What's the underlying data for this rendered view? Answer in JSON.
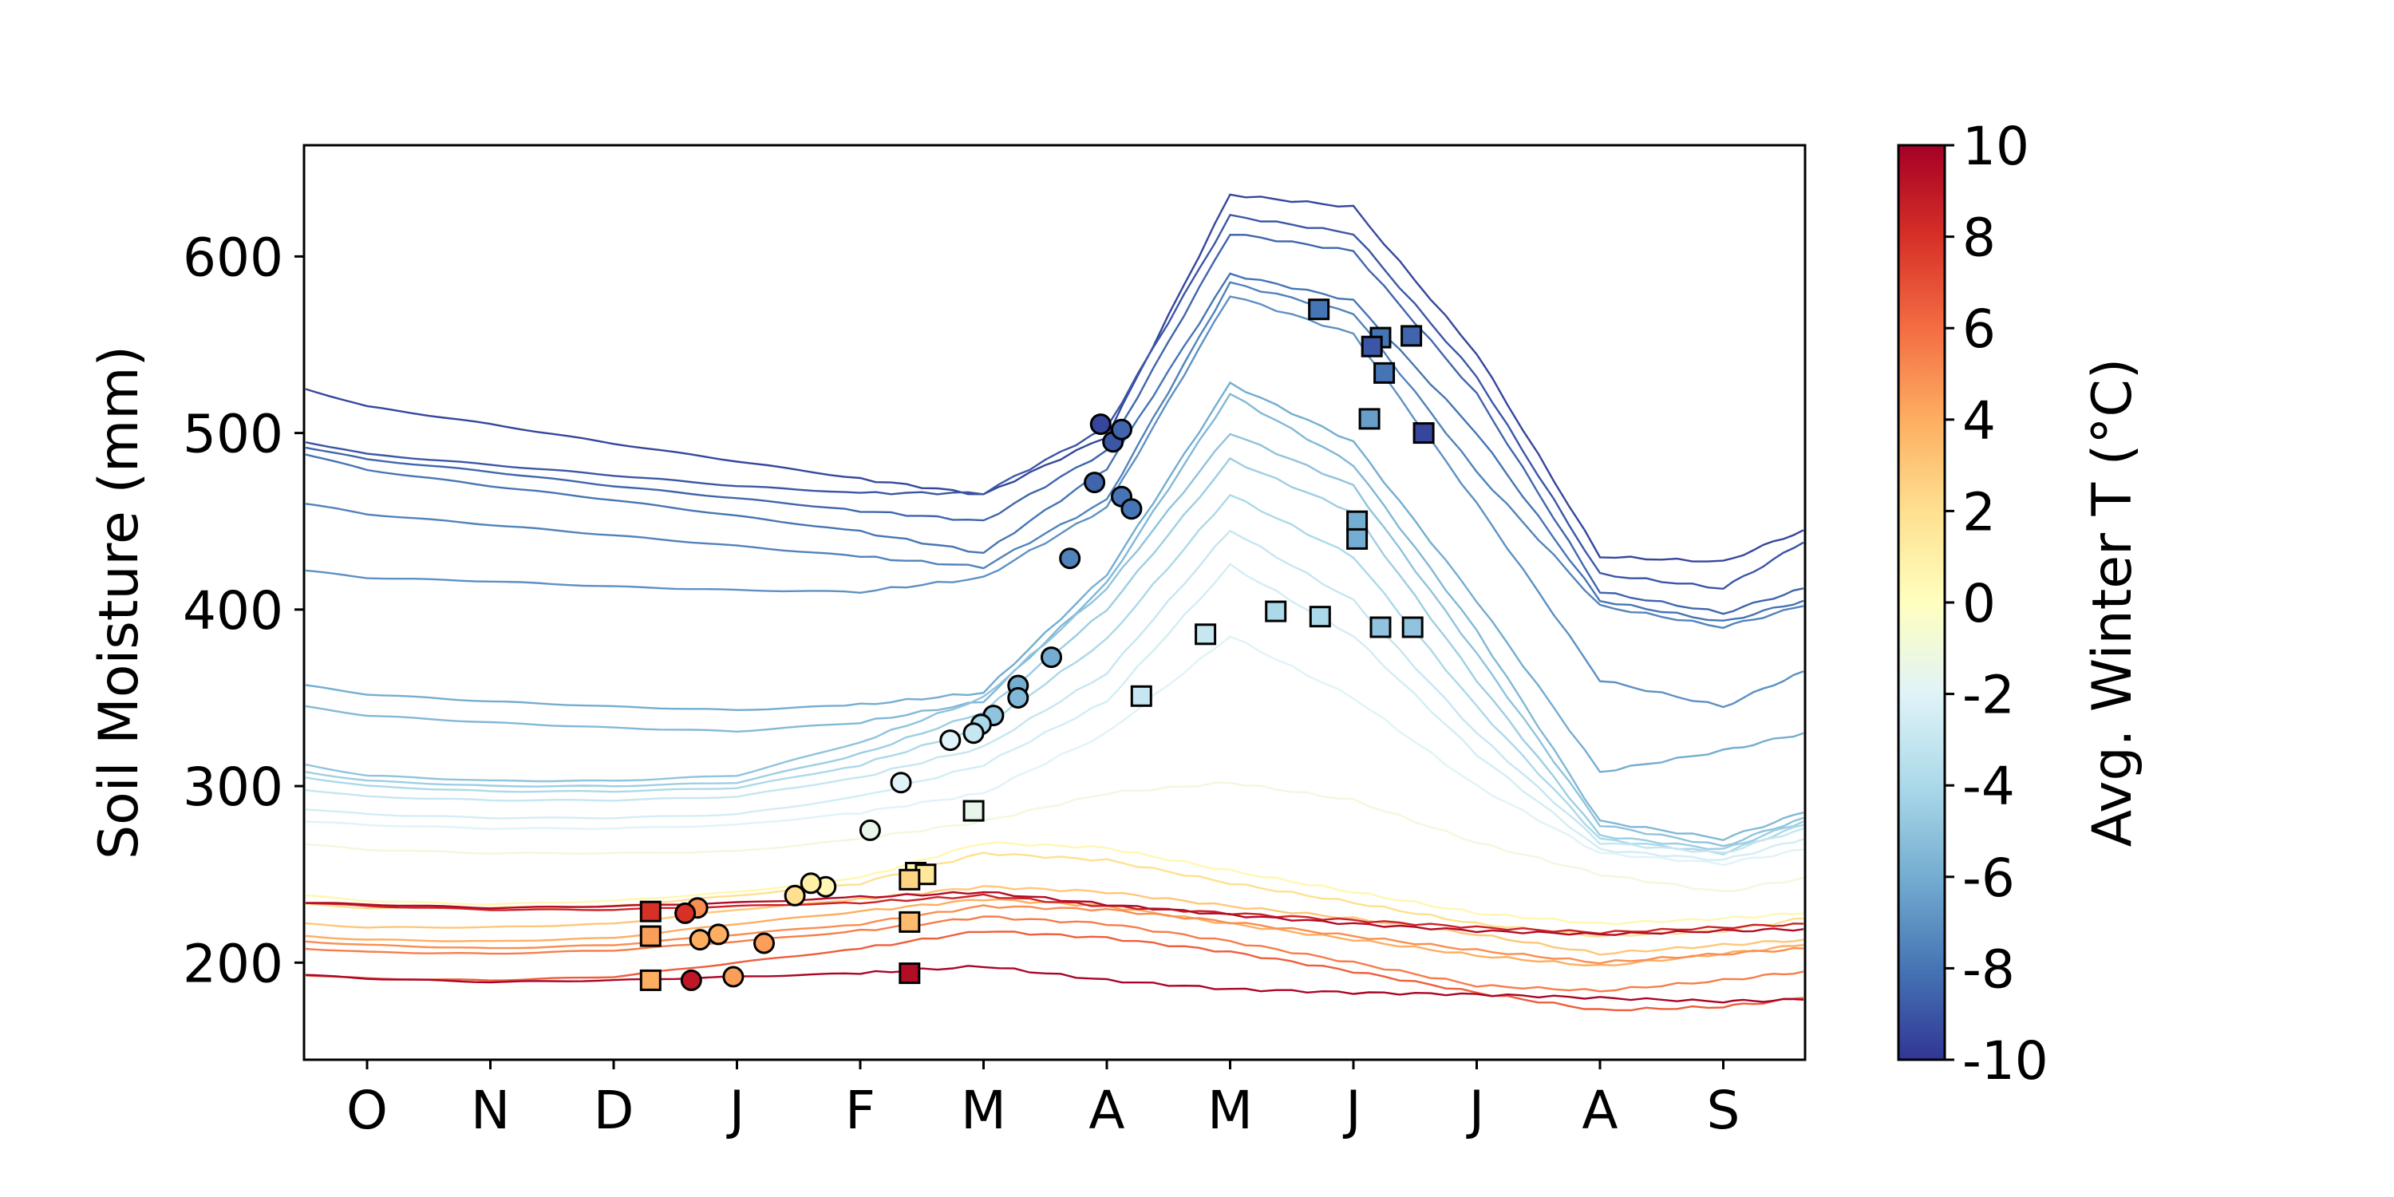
{
  "chart_data": {
    "type": "line",
    "title": "",
    "xlabel": "",
    "ylabel": "Soil Moisture (mm)",
    "x_ticks": [
      "O",
      "N",
      "D",
      "J",
      "F",
      "M",
      "A",
      "M",
      "J",
      "J",
      "A",
      "S"
    ],
    "ylim": [
      145,
      663
    ],
    "y_ticks": [
      "200",
      "300",
      "400",
      "500",
      "600"
    ],
    "grid": false,
    "colorbar": {
      "label": "Avg. Winter T (°C)",
      "range": [
        -10,
        10
      ],
      "ticks": [
        "10",
        "8",
        "6",
        "4",
        "2",
        "0",
        "-2",
        "-4",
        "-6",
        "-8",
        "-10"
      ],
      "colormap": "RdYlBu_r",
      "stops": [
        "#313695",
        "#4575b4",
        "#74add1",
        "#abd9e9",
        "#e0f3f8",
        "#ffffbf",
        "#fee090",
        "#fdae61",
        "#f46d43",
        "#d73027",
        "#a50026"
      ]
    },
    "series": [
      {
        "temp": -9.5,
        "values": [
          525,
          515,
          505,
          494,
          484,
          474,
          465,
          498,
          635,
          628,
          545,
          430,
          427,
          445
        ]
      },
      {
        "temp": -9.0,
        "values": [
          495,
          488,
          482,
          476,
          470,
          466,
          466,
          503,
          623,
          613,
          532,
          420,
          412,
          438
        ]
      },
      {
        "temp": -8.5,
        "values": [
          492,
          485,
          478,
          470,
          463,
          456,
          450,
          490,
          613,
          603,
          522,
          410,
          398,
          412
        ]
      },
      {
        "temp": -8.0,
        "values": [
          488,
          479,
          470,
          462,
          453,
          444,
          432,
          480,
          590,
          575,
          500,
          405,
          393,
          405
        ]
      },
      {
        "temp": -7.5,
        "values": [
          460,
          454,
          448,
          442,
          436,
          430,
          424,
          462,
          585,
          568,
          478,
          402,
          390,
          402
        ]
      },
      {
        "temp": -7.0,
        "values": [
          422,
          418,
          416,
          413,
          411,
          410,
          418,
          458,
          578,
          556,
          460,
          360,
          345,
          365
        ]
      },
      {
        "temp": -6.0,
        "values": [
          357,
          352,
          348,
          345,
          343,
          346,
          353,
          420,
          528,
          495,
          405,
          308,
          320,
          330
        ]
      },
      {
        "temp": -5.5,
        "values": [
          345,
          340,
          336,
          333,
          331,
          336,
          348,
          415,
          522,
          482,
          388,
          280,
          270,
          285
        ]
      },
      {
        "temp": -5.0,
        "values": [
          312,
          306,
          303,
          303,
          306,
          325,
          350,
          412,
          500,
          470,
          375,
          278,
          266,
          282
        ]
      },
      {
        "temp": -4.5,
        "values": [
          308,
          303,
          300,
          300,
          302,
          318,
          342,
          400,
          485,
          455,
          360,
          272,
          264,
          280
        ]
      },
      {
        "temp": -4.0,
        "values": [
          305,
          300,
          297,
          297,
          299,
          312,
          333,
          383,
          465,
          430,
          345,
          270,
          262,
          278
        ]
      },
      {
        "temp": -3.0,
        "values": [
          298,
          294,
          292,
          292,
          294,
          305,
          322,
          364,
          445,
          405,
          330,
          268,
          262,
          276
        ]
      },
      {
        "temp": -2.5,
        "values": [
          287,
          284,
          282,
          282,
          284,
          294,
          312,
          348,
          425,
          385,
          318,
          264,
          258,
          270
        ]
      },
      {
        "temp": -2.0,
        "values": [
          280,
          278,
          276,
          276,
          278,
          285,
          296,
          330,
          385,
          350,
          300,
          262,
          256,
          264
        ]
      },
      {
        "temp": -1.0,
        "values": [
          267,
          264,
          262,
          262,
          263,
          270,
          280,
          296,
          302,
          292,
          268,
          250,
          240,
          248
        ]
      },
      {
        "temp": 0.5,
        "values": [
          238,
          235,
          233,
          235,
          240,
          248,
          268,
          265,
          252,
          240,
          228,
          222,
          225,
          228
        ]
      },
      {
        "temp": 2.0,
        "values": [
          233,
          231,
          231,
          232,
          238,
          245,
          262,
          258,
          245,
          234,
          222,
          215,
          218,
          225
        ]
      },
      {
        "temp": 3.0,
        "values": [
          222,
          220,
          220,
          222,
          230,
          236,
          243,
          240,
          232,
          225,
          216,
          205,
          210,
          213
        ]
      },
      {
        "temp": 4.0,
        "values": [
          215,
          213,
          212,
          214,
          222,
          229,
          236,
          232,
          222,
          213,
          204,
          198,
          205,
          210
        ]
      },
      {
        "temp": 5.0,
        "values": [
          212,
          210,
          208,
          210,
          216,
          222,
          232,
          230,
          223,
          215,
          207,
          200,
          205,
          208
        ]
      },
      {
        "temp": 5.5,
        "values": [
          208,
          206,
          205,
          207,
          212,
          218,
          226,
          222,
          212,
          200,
          187,
          184,
          190,
          195
        ]
      },
      {
        "temp": 6.5,
        "values": [
          193,
          191,
          190,
          192,
          200,
          208,
          218,
          214,
          206,
          195,
          183,
          173,
          175,
          180
        ]
      },
      {
        "temp": 8.5,
        "values": [
          234,
          232,
          230,
          230,
          232,
          234,
          238,
          232,
          228,
          224,
          220,
          217,
          220,
          222
        ]
      },
      {
        "temp": 9.5,
        "values": [
          234,
          233,
          231,
          232,
          234,
          237,
          240,
          233,
          227,
          222,
          218,
          216,
          218,
          219
        ]
      },
      {
        "temp": 9.8,
        "values": [
          193,
          191,
          189,
          190,
          192,
          194,
          198,
          190,
          185,
          183,
          182,
          180,
          178,
          179
        ]
      }
    ],
    "circles": [
      {
        "x": 5.95,
        "y": 505,
        "temp": -9.5
      },
      {
        "x": 6.05,
        "y": 495,
        "temp": -9.0
      },
      {
        "x": 6.12,
        "y": 502,
        "temp": -8.5
      },
      {
        "x": 5.9,
        "y": 472,
        "temp": -8.5
      },
      {
        "x": 6.12,
        "y": 464,
        "temp": -8.0
      },
      {
        "x": 6.2,
        "y": 457,
        "temp": -8.0
      },
      {
        "x": 5.7,
        "y": 429,
        "temp": -7.5
      },
      {
        "x": 5.55,
        "y": 373,
        "temp": -6.0
      },
      {
        "x": 5.28,
        "y": 357,
        "temp": -6.0
      },
      {
        "x": 5.28,
        "y": 350,
        "temp": -5.5
      },
      {
        "x": 5.08,
        "y": 340,
        "temp": -5.0
      },
      {
        "x": 4.98,
        "y": 335,
        "temp": -4.0
      },
      {
        "x": 4.92,
        "y": 330,
        "temp": -3.0
      },
      {
        "x": 4.73,
        "y": 326,
        "temp": -2.0
      },
      {
        "x": 4.33,
        "y": 302,
        "temp": -2.0
      },
      {
        "x": 4.08,
        "y": 275,
        "temp": -1.5
      },
      {
        "x": 3.72,
        "y": 243,
        "temp": 0.5
      },
      {
        "x": 3.6,
        "y": 245,
        "temp": 1.0
      },
      {
        "x": 3.47,
        "y": 238,
        "temp": 2.0
      },
      {
        "x": 2.68,
        "y": 231,
        "temp": 5.0
      },
      {
        "x": 2.58,
        "y": 228,
        "temp": 8.0
      },
      {
        "x": 2.7,
        "y": 213,
        "temp": 4.0
      },
      {
        "x": 2.85,
        "y": 216,
        "temp": 4.0
      },
      {
        "x": 3.22,
        "y": 211,
        "temp": 4.5
      },
      {
        "x": 2.97,
        "y": 192,
        "temp": 4.5
      },
      {
        "x": 2.63,
        "y": 190,
        "temp": 9.0
      }
    ],
    "squares": [
      {
        "x": 7.72,
        "y": 570,
        "temp": -8.0
      },
      {
        "x": 8.22,
        "y": 554,
        "temp": -8.0
      },
      {
        "x": 8.47,
        "y": 555,
        "temp": -8.5
      },
      {
        "x": 8.15,
        "y": 549,
        "temp": -9.0
      },
      {
        "x": 8.25,
        "y": 534,
        "temp": -8.0
      },
      {
        "x": 8.57,
        "y": 500,
        "temp": -9.5
      },
      {
        "x": 8.13,
        "y": 508,
        "temp": -6.5
      },
      {
        "x": 8.03,
        "y": 450,
        "temp": -6.0
      },
      {
        "x": 8.03,
        "y": 440,
        "temp": -6.0
      },
      {
        "x": 8.22,
        "y": 390,
        "temp": -5.0
      },
      {
        "x": 8.48,
        "y": 390,
        "temp": -5.0
      },
      {
        "x": 7.37,
        "y": 399,
        "temp": -4.0
      },
      {
        "x": 7.73,
        "y": 396,
        "temp": -4.0
      },
      {
        "x": 6.8,
        "y": 386,
        "temp": -3.0
      },
      {
        "x": 6.28,
        "y": 351,
        "temp": -3.0
      },
      {
        "x": 4.92,
        "y": 286,
        "temp": -1.5
      },
      {
        "x": 4.45,
        "y": 251,
        "temp": 0.5
      },
      {
        "x": 4.53,
        "y": 250,
        "temp": 1.5
      },
      {
        "x": 4.4,
        "y": 247,
        "temp": 2.5
      },
      {
        "x": 2.3,
        "y": 229,
        "temp": 8.0
      },
      {
        "x": 2.3,
        "y": 215,
        "temp": 4.5
      },
      {
        "x": 2.3,
        "y": 190,
        "temp": 4.0
      },
      {
        "x": 4.4,
        "y": 223,
        "temp": 3.5
      },
      {
        "x": 4.4,
        "y": 194,
        "temp": 9.5
      }
    ]
  }
}
